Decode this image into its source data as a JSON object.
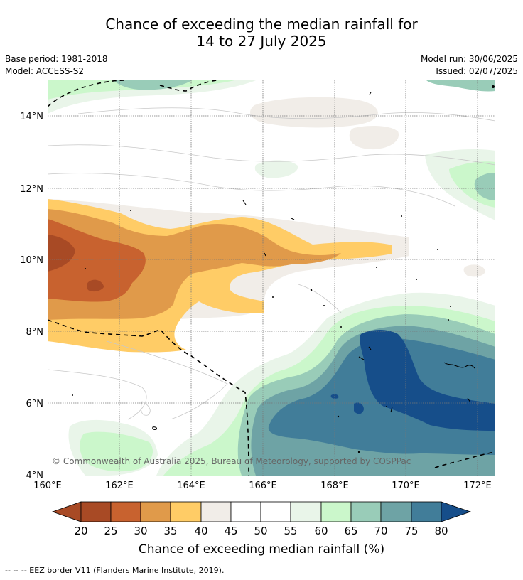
{
  "title_line1": "Chance of exceeding the median rainfall for",
  "title_line2": "14 to 27 July 2025",
  "base_period": "Base period: 1981-2018",
  "model": "Model: ACCESS-S2",
  "model_run": "Model run: 30/06/2025",
  "issued": "Issued: 02/07/2025",
  "copyright": "© Commonwealth of Australia 2025, Bureau of Meteorology, supported by COSPPac",
  "footnote": "--  --  -- EEZ border V11 (Flanders Marine Institute, 2019).",
  "map": {
    "lon_ticks": [
      "160°E",
      "162°E",
      "164°E",
      "166°E",
      "168°E",
      "170°E",
      "172°E"
    ],
    "lat_ticks": [
      "14°N",
      "12°N",
      "10°N",
      "8°N",
      "6°N",
      "4°N"
    ],
    "lon_range": [
      160,
      172.5
    ],
    "lat_range": [
      3.9,
      15.0
    ]
  },
  "colorbar": {
    "label": "Chance of exceeding median rainfall (%)",
    "ticks": [
      "20",
      "25",
      "30",
      "35",
      "40",
      "45",
      "50",
      "55",
      "60",
      "65",
      "70",
      "75",
      "80"
    ],
    "colors": [
      "#a84a25",
      "#a84a25",
      "#c8622f",
      "#e09a4a",
      "#ffcc66",
      "#f1ede8",
      "#ffffff",
      "#ffffff",
      "#e9f5e9",
      "#cbf7cb",
      "#99ccb8",
      "#6ea3a5",
      "#417d99",
      "#164e8a"
    ]
  }
}
